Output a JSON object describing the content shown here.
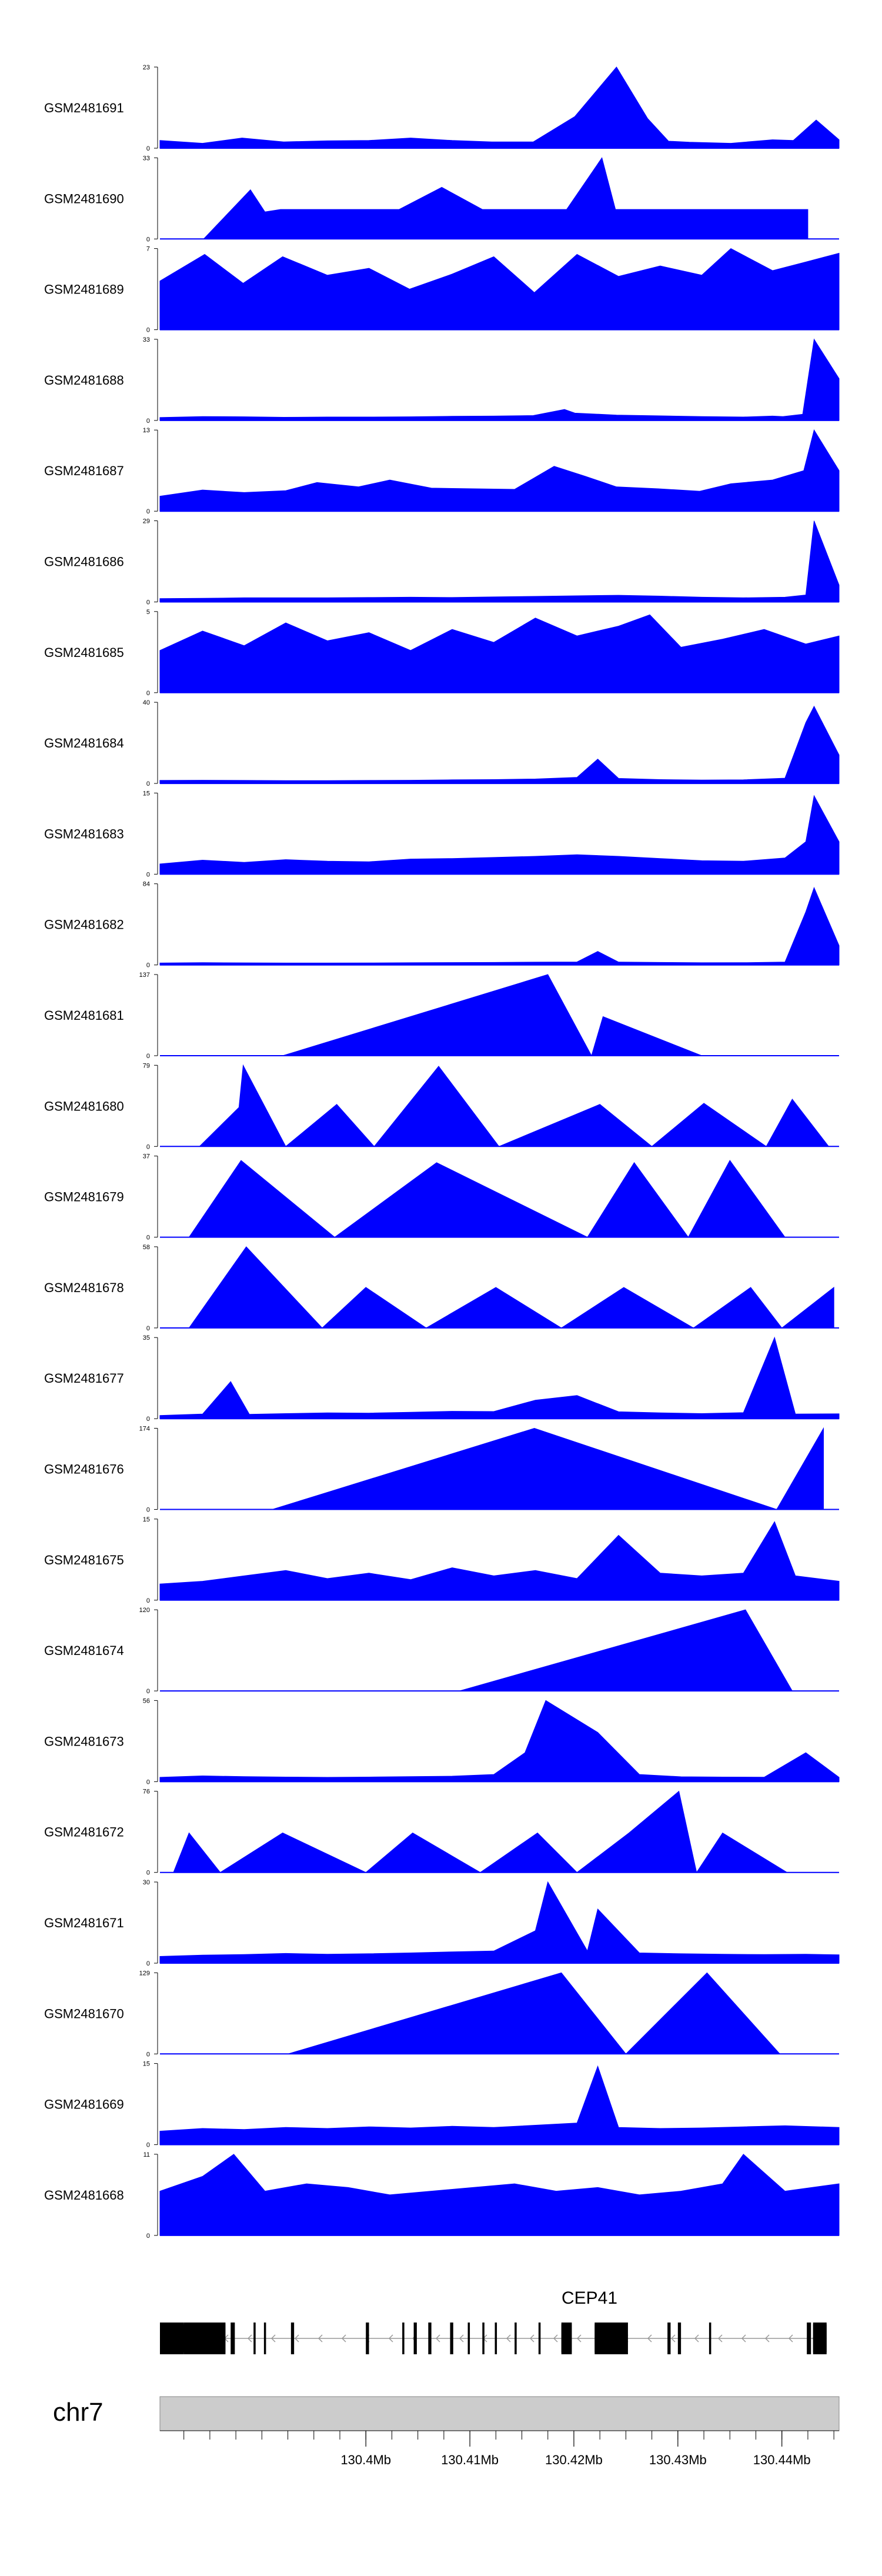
{
  "chart_data": [
    {
      "type": "area",
      "track": "GSM2481691",
      "ylim": [
        0,
        23
      ],
      "ytick_labels": [
        "0",
        "23"
      ],
      "x": [
        130.3802,
        130.3843,
        130.3881,
        130.3921,
        130.3963,
        130.4003,
        130.4043,
        130.4083,
        130.4121,
        130.4161,
        130.4201,
        130.4241,
        130.4271,
        130.4291,
        130.4311,
        130.4351,
        130.4391,
        130.4411,
        130.4433,
        130.4455
      ],
      "y": [
        2.2,
        1.4,
        2.9,
        1.8,
        2.1,
        2.2,
        2.9,
        2.2,
        1.8,
        1.8,
        9.0,
        23.0,
        8.4,
        2.0,
        1.7,
        1.4,
        2.4,
        2.2,
        8.0,
        2.4
      ]
    },
    {
      "type": "area",
      "track": "GSM2481690",
      "ylim": [
        0,
        33
      ],
      "ytick_labels": [
        "0",
        "33"
      ],
      "x": [
        130.3844,
        130.3889,
        130.3903,
        130.3918,
        130.3955,
        130.399,
        130.4032,
        130.4073,
        130.4112,
        130.4151,
        130.4193,
        130.4227,
        130.424,
        130.4272,
        130.4313,
        130.4352,
        130.4391,
        130.4425
      ],
      "y": [
        0,
        20,
        11,
        12,
        12,
        12,
        12,
        21,
        12,
        12,
        12,
        33,
        12,
        12,
        12,
        12,
        12,
        12
      ]
    },
    {
      "type": "area",
      "track": "GSM2481689",
      "ylim": [
        0,
        7
      ],
      "ytick_labels": [
        "0",
        "7"
      ],
      "x": [
        130.3802,
        130.3845,
        130.3882,
        130.392,
        130.3963,
        130.4003,
        130.4042,
        130.4083,
        130.4123,
        130.4162,
        130.4203,
        130.4243,
        130.4283,
        130.4323,
        130.4351,
        130.4391,
        130.4421,
        130.4455
      ],
      "y": [
        4.2,
        6.5,
        4.0,
        6.3,
        4.7,
        5.3,
        3.5,
        4.8,
        6.3,
        3.2,
        6.5,
        4.6,
        5.5,
        4.7,
        7.0,
        5.1,
        5.8,
        6.6
      ]
    },
    {
      "type": "area",
      "track": "GSM2481688",
      "ylim": [
        0,
        33
      ],
      "ytick_labels": [
        "0",
        "33"
      ],
      "x": [
        130.3802,
        130.3843,
        130.3883,
        130.3921,
        130.3963,
        130.4003,
        130.4043,
        130.4083,
        130.4123,
        130.4161,
        130.4191,
        130.4201,
        130.4241,
        130.4283,
        130.4323,
        130.4363,
        130.4391,
        130.4401,
        130.442,
        130.4431,
        130.4455
      ],
      "y": [
        1.2,
        1.6,
        1.5,
        1.3,
        1.4,
        1.4,
        1.5,
        1.7,
        1.8,
        2.0,
        4.5,
        3.0,
        2.2,
        1.9,
        1.6,
        1.4,
        1.8,
        1.6,
        2.5,
        33,
        17
      ]
    },
    {
      "type": "area",
      "track": "GSM2481687",
      "ylim": [
        0,
        13
      ],
      "ytick_labels": [
        "0",
        "13"
      ],
      "x": [
        130.3802,
        130.3843,
        130.3883,
        130.3923,
        130.3953,
        130.3993,
        130.4023,
        130.4063,
        130.4103,
        130.4143,
        130.4181,
        130.4211,
        130.4241,
        130.4281,
        130.4321,
        130.4351,
        130.4391,
        130.4421,
        130.4431,
        130.4455
      ],
      "y": [
        2.4,
        3.4,
        3.0,
        3.3,
        4.6,
        3.9,
        5.0,
        3.7,
        3.6,
        3.5,
        7.2,
        5.6,
        3.9,
        3.6,
        3.2,
        4.4,
        5.0,
        6.5,
        13,
        6.5
      ]
    },
    {
      "type": "area",
      "track": "GSM2481686",
      "ylim": [
        0,
        29
      ],
      "ytick_labels": [
        "0",
        "29"
      ],
      "x": [
        130.3802,
        130.3843,
        130.3883,
        130.3923,
        130.3963,
        130.4003,
        130.4043,
        130.4083,
        130.4123,
        130.4163,
        130.4203,
        130.4243,
        130.4283,
        130.4323,
        130.4363,
        130.4403,
        130.4423,
        130.4431,
        130.4455
      ],
      "y": [
        1.2,
        1.3,
        1.5,
        1.5,
        1.5,
        1.6,
        1.7,
        1.6,
        1.8,
        2.0,
        2.2,
        2.4,
        2.1,
        1.7,
        1.5,
        1.7,
        2.5,
        29,
        6
      ]
    },
    {
      "type": "area",
      "track": "GSM2481685",
      "ylim": [
        0,
        5
      ],
      "ytick_labels": [
        "0",
        "5"
      ],
      "x": [
        130.3802,
        130.3843,
        130.3883,
        130.3923,
        130.3963,
        130.4003,
        130.4043,
        130.4083,
        130.4123,
        130.4163,
        130.4203,
        130.4243,
        130.4273,
        130.4303,
        130.4343,
        130.4383,
        130.4423,
        130.4455
      ],
      "y": [
        2.6,
        3.8,
        2.9,
        4.3,
        3.2,
        3.7,
        2.6,
        3.9,
        3.1,
        4.6,
        3.5,
        4.1,
        4.8,
        2.8,
        3.3,
        3.9,
        3.0,
        3.5
      ]
    },
    {
      "type": "area",
      "track": "GSM2481684",
      "ylim": [
        0,
        40
      ],
      "ytick_labels": [
        "0",
        "40"
      ],
      "x": [
        130.3802,
        130.3843,
        130.3883,
        130.3923,
        130.3963,
        130.4003,
        130.4043,
        130.4083,
        130.4123,
        130.4163,
        130.4203,
        130.4223,
        130.4243,
        130.4283,
        130.4323,
        130.4363,
        130.4403,
        130.4423,
        130.4431,
        130.4455
      ],
      "y": [
        1.5,
        1.6,
        1.5,
        1.4,
        1.4,
        1.5,
        1.6,
        1.8,
        1.9,
        2.2,
        3.0,
        12,
        2.5,
        1.9,
        1.7,
        1.8,
        2.6,
        30,
        38,
        14
      ]
    },
    {
      "type": "area",
      "track": "GSM2481683",
      "ylim": [
        0,
        15
      ],
      "ytick_labels": [
        "0",
        "15"
      ],
      "x": [
        130.3802,
        130.3843,
        130.3883,
        130.3923,
        130.3963,
        130.4003,
        130.4043,
        130.4083,
        130.4123,
        130.4163,
        130.4203,
        130.4243,
        130.4283,
        130.4323,
        130.4363,
        130.4403,
        130.4423,
        130.4431,
        130.4455
      ],
      "y": [
        1.9,
        2.6,
        2.2,
        2.7,
        2.4,
        2.3,
        2.8,
        2.9,
        3.1,
        3.3,
        3.6,
        3.3,
        2.9,
        2.5,
        2.4,
        3.0,
        6,
        14.5,
        6
      ]
    },
    {
      "type": "area",
      "track": "GSM2481682",
      "ylim": [
        0,
        84
      ],
      "ytick_labels": [
        "0",
        "84"
      ],
      "x": [
        130.3802,
        130.3843,
        130.3883,
        130.3923,
        130.3963,
        130.4003,
        130.4043,
        130.4083,
        130.4123,
        130.4163,
        130.4203,
        130.4223,
        130.4243,
        130.4283,
        130.4323,
        130.4363,
        130.4403,
        130.4423,
        130.4431,
        130.4455
      ],
      "y": [
        2.0,
        2.4,
        2.2,
        2.0,
        2.0,
        2.1,
        2.3,
        2.5,
        2.6,
        2.9,
        3.1,
        14,
        3.0,
        2.6,
        2.3,
        2.4,
        3.0,
        55,
        80,
        20
      ]
    },
    {
      "type": "area",
      "track": "GSM2481681",
      "ylim": [
        0,
        137
      ],
      "ytick_labels": [
        "0",
        "137"
      ],
      "x": [
        130.392,
        130.4175,
        130.4217,
        130.4228,
        130.4323
      ],
      "y": [
        0,
        137,
        0,
        66,
        0
      ]
    },
    {
      "type": "area",
      "track": "GSM2481680",
      "ylim": [
        0,
        79
      ],
      "ytick_labels": [
        "0",
        "79"
      ],
      "x": [
        130.384,
        130.3878,
        130.3882,
        130.3923,
        130.3972,
        130.4008,
        130.407,
        130.4128,
        130.4225,
        130.4275,
        130.4325,
        130.4385,
        130.441,
        130.4445
      ],
      "y": [
        0,
        38,
        79,
        0,
        41,
        0,
        78,
        0,
        41,
        0,
        42,
        0,
        46,
        0
      ]
    },
    {
      "type": "area",
      "track": "GSM2481679",
      "ylim": [
        0,
        37
      ],
      "ytick_labels": [
        "0",
        "37"
      ],
      "x": [
        130.383,
        130.388,
        130.397,
        130.4068,
        130.4213,
        130.4258,
        130.431,
        130.435,
        130.4403
      ],
      "y": [
        0,
        35,
        0,
        34,
        0,
        34,
        0,
        35,
        0
      ]
    },
    {
      "type": "area",
      "track": "GSM2481678",
      "ylim": [
        0,
        58
      ],
      "ytick_labels": [
        "0",
        "58"
      ],
      "x": [
        130.383,
        130.3885,
        130.3958,
        130.4,
        130.4058,
        130.4125,
        130.4188,
        130.4248,
        130.4315,
        130.437,
        130.44,
        130.445
      ],
      "y": [
        0,
        58,
        0,
        29,
        0,
        29,
        0,
        29,
        0,
        29,
        0,
        29
      ]
    },
    {
      "type": "area",
      "track": "GSM2481677",
      "ylim": [
        0,
        35
      ],
      "ytick_labels": [
        "0",
        "35"
      ],
      "x": [
        130.3802,
        130.3843,
        130.387,
        130.3888,
        130.3923,
        130.3963,
        130.4003,
        130.4043,
        130.4083,
        130.4123,
        130.4163,
        130.4203,
        130.4243,
        130.4283,
        130.4323,
        130.4363,
        130.4393,
        130.4413,
        130.4455
      ],
      "y": [
        1.4,
        2.0,
        16,
        1.9,
        2.2,
        2.5,
        2.4,
        2.8,
        3.2,
        3.1,
        8,
        10,
        3,
        2.5,
        2.2,
        2.6,
        35,
        2,
        2.1
      ]
    },
    {
      "type": "area",
      "track": "GSM2481676",
      "ylim": [
        0,
        174
      ],
      "ytick_labels": [
        "0",
        "174"
      ],
      "x": [
        130.391,
        130.4162,
        130.4395,
        130.444
      ],
      "y": [
        0,
        174,
        0,
        174
      ]
    },
    {
      "type": "area",
      "track": "GSM2481675",
      "ylim": [
        0,
        15
      ],
      "ytick_labels": [
        "0",
        "15"
      ],
      "x": [
        130.3802,
        130.3843,
        130.3883,
        130.3923,
        130.3963,
        130.4003,
        130.4043,
        130.4083,
        130.4123,
        130.4163,
        130.4203,
        130.4243,
        130.4283,
        130.4323,
        130.4363,
        130.4393,
        130.4413,
        130.4455
      ],
      "y": [
        3.0,
        3.5,
        4.5,
        5.5,
        4.0,
        5.0,
        3.8,
        6.0,
        4.5,
        5.5,
        4.0,
        12.0,
        5.0,
        4.5,
        5.0,
        14.5,
        4.5,
        3.5
      ]
    },
    {
      "type": "area",
      "track": "GSM2481674",
      "ylim": [
        0,
        120
      ],
      "ytick_labels": [
        "0",
        "120"
      ],
      "x": [
        130.409,
        130.4365,
        130.441
      ],
      "y": [
        0,
        120,
        0
      ]
    },
    {
      "type": "area",
      "track": "GSM2481673",
      "ylim": [
        0,
        56
      ],
      "ytick_labels": [
        "0",
        "56"
      ],
      "x": [
        130.3802,
        130.3843,
        130.3883,
        130.3923,
        130.3963,
        130.4003,
        130.4043,
        130.4083,
        130.4123,
        130.4153,
        130.4173,
        130.4223,
        130.4263,
        130.4303,
        130.4343,
        130.4383,
        130.4423,
        130.4455
      ],
      "y": [
        3,
        4,
        3.5,
        3.2,
        3.0,
        3.2,
        3.5,
        3.8,
        5,
        20,
        56,
        34,
        5,
        3.4,
        3.2,
        3.1,
        20,
        3
      ]
    },
    {
      "type": "area",
      "track": "GSM2481672",
      "ylim": [
        0,
        76
      ],
      "ytick_labels": [
        "0",
        "76"
      ],
      "x": [
        130.3815,
        130.383,
        130.386,
        130.392,
        130.4,
        130.4045,
        130.411,
        130.4165,
        130.4203,
        130.4253,
        130.4301,
        130.4318,
        130.4343,
        130.4405
      ],
      "y": [
        0,
        37,
        0,
        37,
        0,
        37,
        0,
        37,
        0,
        37,
        76,
        0,
        37,
        0
      ]
    },
    {
      "type": "area",
      "track": "GSM2481671",
      "ylim": [
        0,
        30
      ],
      "ytick_labels": [
        "0",
        "30"
      ],
      "x": [
        130.3802,
        130.3843,
        130.3883,
        130.3923,
        130.3963,
        130.4003,
        130.4043,
        130.4083,
        130.4123,
        130.4163,
        130.4175,
        130.4213,
        130.4223,
        130.4263,
        130.4303,
        130.4343,
        130.4383,
        130.4423,
        130.4455
      ],
      "y": [
        2.5,
        3,
        3.2,
        3.6,
        3.3,
        3.5,
        3.8,
        4.2,
        4.5,
        12,
        30,
        4.5,
        20,
        3.8,
        3.5,
        3.3,
        3.2,
        3.3,
        3.1
      ]
    },
    {
      "type": "area",
      "track": "GSM2481670",
      "ylim": [
        0,
        129
      ],
      "ytick_labels": [
        "0",
        "129"
      ],
      "x": [
        130.3925,
        130.4188,
        130.425,
        130.4328,
        130.4398
      ],
      "y": [
        0,
        129,
        0,
        129,
        0
      ]
    },
    {
      "type": "area",
      "track": "GSM2481669",
      "ylim": [
        0,
        15
      ],
      "ytick_labels": [
        "0",
        "15"
      ],
      "x": [
        130.3802,
        130.3843,
        130.3883,
        130.3923,
        130.3963,
        130.4003,
        130.4043,
        130.4083,
        130.4123,
        130.4163,
        130.4203,
        130.4223,
        130.4243,
        130.4283,
        130.4323,
        130.4363,
        130.4403,
        130.4455
      ],
      "y": [
        2.5,
        3.0,
        2.8,
        3.2,
        3.0,
        3.3,
        3.1,
        3.4,
        3.2,
        3.6,
        4.0,
        14.5,
        3.2,
        3.0,
        3.1,
        3.3,
        3.5,
        3.2
      ]
    },
    {
      "type": "area",
      "track": "GSM2481668",
      "ylim": [
        0,
        11
      ],
      "ytick_labels": [
        "0",
        "11"
      ],
      "x": [
        130.3802,
        130.3843,
        130.3873,
        130.3903,
        130.3943,
        130.3983,
        130.4023,
        130.4063,
        130.4103,
        130.4143,
        130.4183,
        130.4223,
        130.4263,
        130.4303,
        130.4343,
        130.4363,
        130.4403,
        130.4455
      ],
      "y": [
        6,
        8,
        11,
        6,
        7,
        6.5,
        5.5,
        6,
        6.5,
        7,
        6,
        6.5,
        5.5,
        6,
        7,
        11,
        6,
        7
      ]
    }
  ],
  "colors": {
    "signal": "#0000ff",
    "gene": "#000000",
    "ideogram": "#cccccc",
    "axis": "#000000"
  },
  "genome_axis": {
    "xlim": [
      130.3802,
      130.4455
    ],
    "ticks": [
      130.4,
      130.41,
      130.42,
      130.43,
      130.44
    ],
    "tick_labels": [
      "130.4Mb",
      "130.41Mb",
      "130.42Mb",
      "130.43Mb",
      "130.44Mb"
    ]
  },
  "gene": {
    "name": "CEP41",
    "strand": "-",
    "exons": [
      [
        130.3802,
        130.3825
      ],
      [
        130.3825,
        130.3865
      ],
      [
        130.387,
        130.3874
      ],
      [
        130.3892,
        130.3894
      ],
      [
        130.3902,
        130.3904
      ],
      [
        130.3928,
        130.3931
      ],
      [
        130.4,
        130.4003
      ],
      [
        130.4035,
        130.4037
      ],
      [
        130.4046,
        130.4049
      ],
      [
        130.406,
        130.4063
      ],
      [
        130.4081,
        130.4084
      ],
      [
        130.4098,
        130.41
      ],
      [
        130.4112,
        130.4114
      ],
      [
        130.4124,
        130.4126
      ],
      [
        130.4143,
        130.4145
      ],
      [
        130.4166,
        130.4168
      ],
      [
        130.4188,
        130.4198
      ],
      [
        130.422,
        130.425
      ],
      [
        130.4249,
        130.4252
      ],
      [
        130.429,
        130.4293
      ],
      [
        130.43,
        130.4303
      ],
      [
        130.433,
        130.4332
      ],
      [
        130.4424,
        130.4428
      ],
      [
        130.443,
        130.4443
      ]
    ],
    "thick": [
      [
        130.3802,
        130.3865
      ],
      [
        130.4188,
        130.4198
      ],
      [
        130.422,
        130.425
      ],
      [
        130.443,
        130.4443
      ]
    ]
  },
  "chromosome": {
    "label": "chr7"
  }
}
